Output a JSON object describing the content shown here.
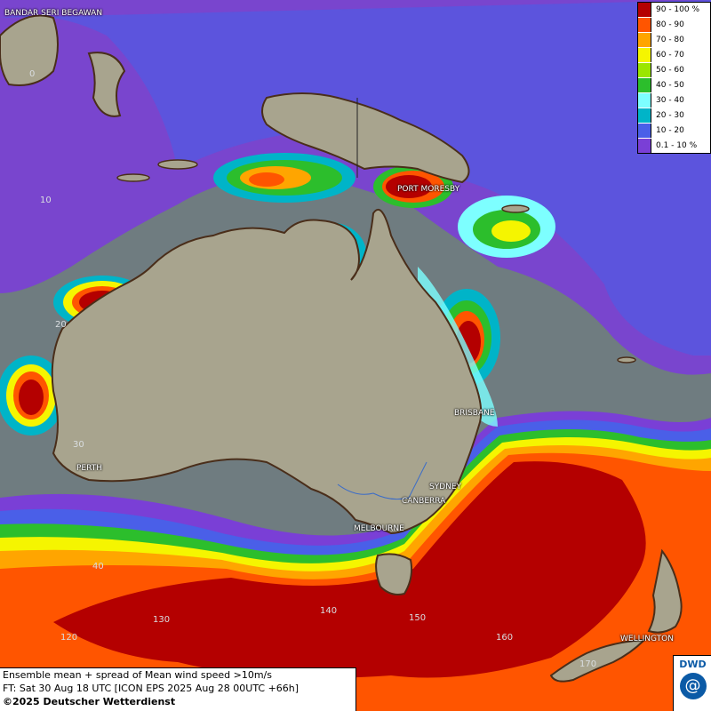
{
  "legend": {
    "items": [
      {
        "label": "90 - 100 %",
        "color": "#b40000"
      },
      {
        "label": "80 - 90",
        "color": "#ff5500"
      },
      {
        "label": "70 - 80",
        "color": "#ffa500"
      },
      {
        "label": "60 - 70",
        "color": "#f5f500"
      },
      {
        "label": "50 - 60",
        "color": "#9be600"
      },
      {
        "label": "40 - 50",
        "color": "#2cbe2c"
      },
      {
        "label": "30 - 40",
        "color": "#7dffff"
      },
      {
        "label": "20 - 30",
        "color": "#00b4c8"
      },
      {
        "label": "10 - 20",
        "color": "#4a5fe8"
      },
      {
        "label": "0.1 - 10 %",
        "color": "#7a3fd6"
      }
    ]
  },
  "cities": {
    "bandar": "BANDAR SERI BEGAWAN",
    "port_moresby": "PORT MORESBY",
    "brisbane": "BRISBANE",
    "perth": "PERTH",
    "sydney": "SYDNEY",
    "canberra": "CANBERRA",
    "melbourne": "MELBOURNE",
    "wellington": "WELLINGTON"
  },
  "grid_labels": {
    "lat0": "0",
    "lat10": "10",
    "lat20": "20",
    "lat30": "30",
    "lat40": "40",
    "lon120": "120",
    "lon130": "130",
    "lon150": "150",
    "lon160": "160",
    "lon170": "170",
    "lon140": "140"
  },
  "info": {
    "line1": "Ensemble mean + spread of Mean wind speed >10m/s",
    "line2": "FT: Sat 30 Aug 18 UTC [ICON EPS 2025 Aug 28 00UTC +66h]",
    "line3": "©2025 Deutscher Wetterdienst"
  },
  "logo": {
    "text": "DWD",
    "icon": "swirl-icon"
  }
}
